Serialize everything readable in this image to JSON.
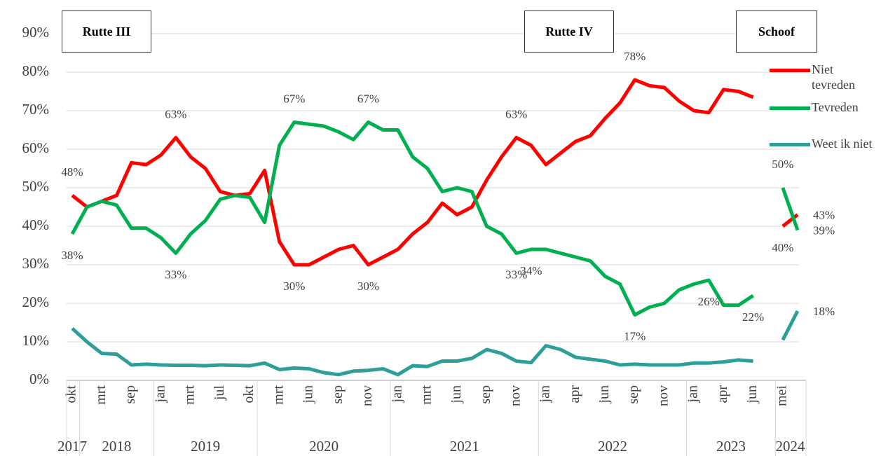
{
  "chart_data": {
    "type": "line",
    "categories": [
      "okt",
      null,
      "mrt",
      null,
      "sep",
      null,
      "jan",
      null,
      "mrt",
      null,
      "jul",
      null,
      "okt",
      null,
      "mrt",
      null,
      "jun",
      null,
      "sep",
      null,
      "nov",
      null,
      "jan",
      null,
      "mrt",
      null,
      "jun",
      null,
      "sep",
      null,
      "nov",
      null,
      "jan",
      null,
      "apr",
      null,
      "jun",
      null,
      "sep",
      null,
      "nov",
      null,
      "jan",
      null,
      "apr",
      null,
      "jun",
      null,
      "mei",
      null
    ],
    "years": [
      {
        "label": "2017",
        "count": 1
      },
      {
        "label": "2018",
        "count": 5
      },
      {
        "label": "2019",
        "count": 7
      },
      {
        "label": "2020",
        "count": 9
      },
      {
        "label": "2021",
        "count": 10
      },
      {
        "label": "2022",
        "count": 10
      },
      {
        "label": "2023",
        "count": 6
      },
      {
        "label": "2024",
        "count": 2
      }
    ],
    "annotations": [
      "Rutte III",
      "Rutte IV",
      "Schoof"
    ],
    "series": [
      {
        "name": "Niet tevreden",
        "color": "#ff0000",
        "values": [
          48,
          45,
          46.5,
          48,
          56.5,
          56,
          58.5,
          63,
          58,
          55,
          49,
          48,
          48.5,
          54.5,
          36,
          30,
          30,
          32,
          34,
          35,
          30,
          32,
          34,
          38,
          41,
          46,
          43,
          45,
          52,
          58,
          63,
          61,
          56,
          59,
          62,
          63.5,
          68,
          72,
          78,
          76.5,
          76,
          72.5,
          70,
          69.5,
          75.5,
          75,
          73.5,
          null,
          40,
          43
        ],
        "value_labels": [
          "48%",
          null,
          null,
          null,
          null,
          null,
          null,
          "63%",
          null,
          null,
          null,
          null,
          null,
          null,
          null,
          "30%",
          null,
          null,
          null,
          null,
          "30%",
          null,
          null,
          null,
          null,
          null,
          null,
          null,
          null,
          null,
          "63%",
          null,
          null,
          null,
          null,
          null,
          null,
          null,
          "78%",
          null,
          null,
          null,
          null,
          null,
          null,
          null,
          null,
          null,
          "40%",
          "43%"
        ]
      },
      {
        "name": "Tevreden",
        "color": "#00b050",
        "values": [
          38,
          45,
          46.5,
          45.5,
          39.5,
          39.5,
          37,
          33,
          38,
          41.5,
          47,
          48,
          47.5,
          41,
          61,
          67,
          66.5,
          66,
          64.5,
          62.5,
          67,
          65,
          65,
          58,
          55,
          49,
          50,
          49,
          40,
          38,
          33,
          34,
          34,
          33,
          32,
          31,
          27,
          25,
          17,
          19,
          20,
          23.5,
          25,
          26,
          19.5,
          19.5,
          22,
          null,
          50,
          39
        ],
        "value_labels": [
          "38%",
          null,
          null,
          null,
          null,
          null,
          null,
          "33%",
          null,
          null,
          null,
          null,
          null,
          null,
          null,
          "67%",
          null,
          null,
          null,
          null,
          "67%",
          null,
          null,
          null,
          null,
          null,
          null,
          null,
          null,
          null,
          "33%",
          "34%",
          null,
          null,
          null,
          null,
          null,
          null,
          "17%",
          null,
          null,
          null,
          null,
          "26%",
          null,
          null,
          "22%",
          null,
          "50%",
          "39%"
        ]
      },
      {
        "name": "Weet ik niet",
        "color": "#2e9e98",
        "values": [
          13.5,
          10,
          7,
          6.8,
          4,
          4.2,
          4,
          3.9,
          3.9,
          3.8,
          4,
          3.9,
          3.8,
          4.5,
          2.8,
          3.2,
          3,
          2,
          1.5,
          2.4,
          2.6,
          3,
          1.5,
          3.8,
          3.6,
          5,
          5,
          5.7,
          8,
          7,
          5,
          4.6,
          9,
          8,
          6,
          5.5,
          5,
          4,
          4.2,
          4,
          4,
          4,
          4.5,
          4.5,
          4.8,
          5.3,
          5,
          null,
          10.5,
          18
        ],
        "value_labels": [
          null,
          null,
          null,
          null,
          null,
          null,
          null,
          null,
          null,
          null,
          null,
          null,
          null,
          null,
          null,
          null,
          null,
          null,
          null,
          null,
          null,
          null,
          null,
          null,
          null,
          null,
          null,
          null,
          null,
          null,
          null,
          null,
          null,
          null,
          null,
          null,
          null,
          null,
          null,
          null,
          null,
          null,
          null,
          null,
          null,
          null,
          null,
          null,
          null,
          "18%"
        ]
      }
    ],
    "ylim": [
      0,
      90
    ],
    "yticks": [
      {
        "value": 0,
        "label": "0%"
      },
      {
        "value": 10,
        "label": "10%"
      },
      {
        "value": 20,
        "label": "20%"
      },
      {
        "value": 30,
        "label": "30%"
      },
      {
        "value": 40,
        "label": "40%"
      },
      {
        "value": 50,
        "label": "50%"
      },
      {
        "value": 60,
        "label": "60%"
      },
      {
        "value": 70,
        "label": "70%"
      },
      {
        "value": 80,
        "label": "80%"
      },
      {
        "value": 90,
        "label": "90%"
      }
    ],
    "grid": true
  }
}
